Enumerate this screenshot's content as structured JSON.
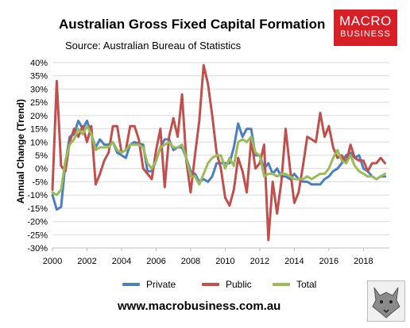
{
  "header": {
    "title": "Australian Gross Fixed Capital Formation",
    "subtitle": "Source: Australian Bureau of Statistics"
  },
  "logo": {
    "line1": "MACRO",
    "line2": "BUSINESS"
  },
  "footer": {
    "url": "www.macrobusiness.com.au"
  },
  "colors": {
    "private": "#4c7fc0",
    "public": "#c0504d",
    "total": "#9bbb59",
    "brand": "#d61f26"
  },
  "chart_data": {
    "type": "line",
    "title": "Australian Gross Fixed Capital Formation",
    "ylabel": "Annual Change (Trend)",
    "xlabel": "",
    "xlim": [
      2000,
      2019.5
    ],
    "ylim": [
      -30,
      40
    ],
    "x_ticks": [
      2000,
      2002,
      2004,
      2006,
      2008,
      2010,
      2012,
      2014,
      2016,
      2018
    ],
    "y_ticks": [
      40,
      35,
      30,
      25,
      20,
      15,
      10,
      5,
      0,
      -5,
      -10,
      -15,
      -20,
      -25,
      -30
    ],
    "y_tick_labels": [
      "40%",
      "35%",
      "30%",
      "25%",
      "20%",
      "15%",
      "10%",
      "5%",
      "0%",
      "-5%",
      "-10%",
      "-15%",
      "-20%",
      "-25%",
      "-30%"
    ],
    "grid": "horizontal",
    "legend_position": "bottom",
    "x": [
      2000.0,
      2000.25,
      2000.5,
      2000.75,
      2001.0,
      2001.25,
      2001.5,
      2001.75,
      2002.0,
      2002.25,
      2002.5,
      2002.75,
      2003.0,
      2003.25,
      2003.5,
      2003.75,
      2004.0,
      2004.25,
      2004.5,
      2004.75,
      2005.0,
      2005.25,
      2005.5,
      2005.75,
      2006.0,
      2006.25,
      2006.5,
      2006.75,
      2007.0,
      2007.25,
      2007.5,
      2007.75,
      2008.0,
      2008.25,
      2008.5,
      2008.75,
      2009.0,
      2009.25,
      2009.5,
      2009.75,
      2010.0,
      2010.25,
      2010.5,
      2010.75,
      2011.0,
      2011.25,
      2011.5,
      2011.75,
      2012.0,
      2012.25,
      2012.5,
      2012.75,
      2013.0,
      2013.25,
      2013.5,
      2013.75,
      2014.0,
      2014.25,
      2014.5,
      2014.75,
      2015.0,
      2015.25,
      2015.5,
      2015.75,
      2016.0,
      2016.25,
      2016.5,
      2016.75,
      2017.0,
      2017.25,
      2017.5,
      2017.75,
      2018.0,
      2018.25,
      2018.5,
      2018.75,
      2019.0,
      2019.25
    ],
    "series": [
      {
        "name": "Private",
        "color": "#4c7fc0",
        "values": [
          -10,
          -15.5,
          -14.5,
          2,
          12,
          13,
          18,
          15,
          18,
          13,
          8,
          11,
          9,
          9,
          10,
          6,
          5,
          4,
          9,
          10,
          9.5,
          9,
          -1,
          -1,
          3,
          8,
          11,
          11,
          7,
          8,
          8,
          4,
          -1,
          -2,
          -5,
          -4,
          -5,
          -3,
          2,
          2,
          2,
          2,
          8,
          17,
          12,
          15,
          15,
          5,
          5,
          0,
          2,
          -2,
          0,
          -3,
          -3,
          -4,
          -2,
          -4,
          -5,
          -5,
          -6,
          -6,
          -6,
          -4,
          -3,
          -1,
          0,
          2,
          5,
          6,
          4,
          5,
          0,
          -1,
          -3,
          -4,
          -3,
          -3
        ]
      },
      {
        "name": "Public",
        "color": "#c0504d",
        "values": [
          -8,
          33,
          1,
          -1,
          10,
          15,
          12,
          16,
          10,
          16,
          -6,
          -2,
          3,
          6,
          16,
          16,
          6,
          7,
          16,
          16,
          11,
          0,
          -2,
          -4,
          7,
          15,
          -7,
          12,
          19,
          12,
          28,
          3,
          -9,
          5,
          18,
          39,
          32,
          20,
          6,
          0,
          -11,
          -14,
          -8,
          4,
          -1,
          -9,
          11,
          0,
          2,
          9,
          -27,
          -5,
          -17,
          -5,
          15,
          0,
          -13,
          -9,
          1,
          12,
          11,
          10,
          21,
          12,
          16,
          8,
          4,
          5,
          2,
          9,
          4,
          3,
          3,
          -1,
          2,
          2,
          4,
          2
        ]
      },
      {
        "name": "Total",
        "color": "#9bbb59",
        "values": [
          -9,
          -10,
          -8,
          3,
          9,
          11,
          15,
          13,
          16,
          13,
          7,
          8,
          8,
          8,
          10,
          7,
          6,
          7,
          9,
          9,
          9,
          8,
          2,
          0,
          3,
          8,
          9,
          10,
          8,
          8,
          9,
          4,
          -3,
          -3,
          -6,
          -2,
          2,
          4,
          5,
          5,
          0,
          4,
          1,
          10,
          11,
          10,
          12,
          6,
          5,
          -3,
          -2,
          -2,
          -3,
          -2,
          -2,
          -3,
          -4,
          -4,
          -4,
          -3,
          -4,
          -3,
          -2,
          -2,
          0,
          4,
          7,
          3,
          2,
          5,
          1,
          -1,
          -2,
          -3,
          -3,
          -4,
          -3,
          -2
        ]
      }
    ]
  }
}
